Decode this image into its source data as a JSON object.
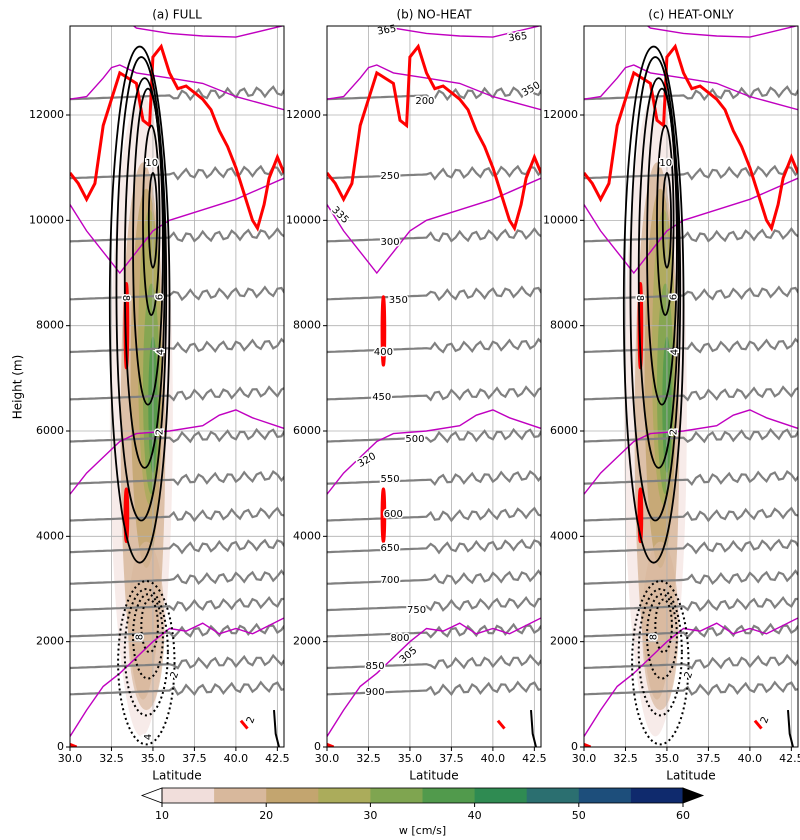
{
  "chart_data": [
    {
      "type": "contour",
      "title": "(a) FULL",
      "x_label": "Latitude",
      "y_label": "Height (m)",
      "xlim": [
        30,
        42.9
      ],
      "ylim": [
        0,
        13690
      ],
      "xticks": [
        {
          "value": 30,
          "label": "30.0"
        },
        {
          "value": 32.5,
          "label": "32.5"
        },
        {
          "value": 35,
          "label": "35.0"
        },
        {
          "value": 37.5,
          "label": "37.5"
        },
        {
          "value": 40,
          "label": "40.0"
        },
        {
          "value": 42.5,
          "label": "42.5"
        }
      ],
      "yticks": [
        0,
        2000,
        4000,
        6000,
        8000,
        10000,
        12000
      ],
      "grid": true,
      "contour_labels": [
        10,
        8,
        6,
        4,
        2,
        8,
        2,
        4,
        2
      ]
    },
    {
      "type": "contour",
      "title": "(b) NO-HEAT",
      "x_label": "Latitude",
      "xlim": [
        30,
        42.9
      ],
      "ylim": [
        0,
        13690
      ],
      "xticks": [
        {
          "value": 30,
          "label": "30.0"
        },
        {
          "value": 32.5,
          "label": "32.5"
        },
        {
          "value": 35,
          "label": "35.0"
        },
        {
          "value": 37.5,
          "label": "37.5"
        },
        {
          "value": 40,
          "label": "40.0"
        },
        {
          "value": 42.5,
          "label": "42.5"
        }
      ],
      "yticks": [
        0,
        2000,
        4000,
        6000,
        8000,
        10000,
        12000
      ],
      "grid": true,
      "contour_labels": [
        200,
        250,
        300,
        350,
        400,
        450,
        500,
        550,
        600,
        650,
        700,
        750,
        800,
        850,
        900,
        365,
        365,
        350,
        335,
        320,
        305
      ]
    },
    {
      "type": "contour",
      "title": "(c) HEAT-ONLY",
      "x_label": "Latitude",
      "xlim": [
        30,
        42.9
      ],
      "ylim": [
        0,
        13690
      ],
      "xticks": [
        {
          "value": 30,
          "label": "30.0"
        },
        {
          "value": 32.5,
          "label": "32.5"
        },
        {
          "value": 35,
          "label": "35.0"
        },
        {
          "value": 37.5,
          "label": "37.5"
        },
        {
          "value": 40,
          "label": "40.0"
        },
        {
          "value": 42.5,
          "label": "42.5"
        }
      ],
      "yticks": [
        0,
        2000,
        4000,
        6000,
        8000,
        10000,
        12000
      ],
      "grid": true,
      "contour_labels": [
        10,
        8,
        6,
        4,
        2,
        8,
        2,
        2
      ]
    }
  ],
  "colorbar": {
    "label": "w [cm/s]",
    "lim": [
      10,
      60
    ],
    "ticks": [
      10,
      20,
      30,
      40,
      50,
      60
    ],
    "colors": [
      "#f1dedb",
      "#d8b89c",
      "#c3a56f",
      "#abac5b",
      "#7fa550",
      "#519a4c",
      "#2f8b52",
      "#2b6f70",
      "#1d4e7b",
      "#0f2a6d"
    ],
    "extend_colors": [
      "#ffffff",
      "#000000"
    ]
  }
}
